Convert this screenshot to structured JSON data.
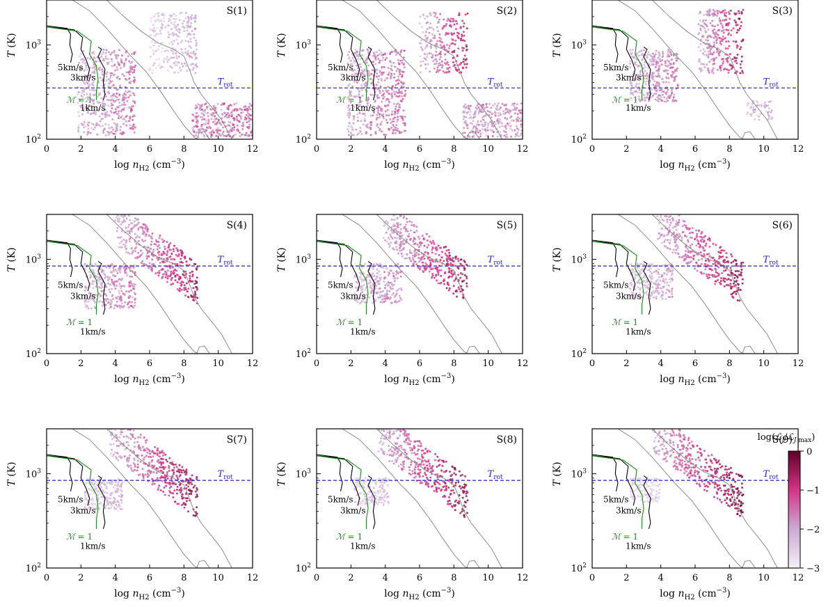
{
  "figure": {
    "x_ticks": [
      "0",
      "2",
      "4",
      "6",
      "8",
      "10",
      "12"
    ],
    "y_ticks": [
      {
        "base": "10",
        "exp": "2",
        "value": 100
      },
      {
        "base": "10",
        "exp": "3",
        "value": 1000
      }
    ],
    "xlabel_prefix": "log ",
    "xlabel_var": "n",
    "xlabel_sub": "H2",
    "xlabel_unit": " (cm",
    "xlabel_exp": "−3",
    "xlabel_close": ")",
    "ylabel_var": "T",
    "ylabel_unit": " (K)",
    "trot_var": "T",
    "trot_sub": "rot",
    "curve_labels": [
      "5km/s",
      "3km/s",
      "1km/s"
    ],
    "mach_var": "ℳ",
    "mach_eq": " = 1",
    "colors": {
      "trot_line": "#1f1fd6",
      "mach_line": "#1a8a1a",
      "velocity_line": "#000000",
      "boundary_line": "#8c8c8c",
      "cmap_low": "#f2eef6",
      "cmap_mid": "#d6398b",
      "cmap_high": "#5e0125"
    }
  },
  "colorbar": {
    "label_prefix": "log(",
    "label_L": "ℒ",
    "label_sub1": "J",
    "label_slash": "/",
    "label_sub2": "J",
    "label_max": " max",
    "label_close": ")",
    "ticks": [
      "0",
      "−1",
      "−2",
      "−3"
    ],
    "range": [
      -3,
      0
    ]
  },
  "chart_data": [
    {
      "type": "scatter",
      "title": "S(1)",
      "trot": 350,
      "xlim": [
        0,
        12
      ],
      "ylim": [
        100,
        3000
      ]
    },
    {
      "type": "scatter",
      "title": "S(2)",
      "trot": 350,
      "xlim": [
        0,
        12
      ],
      "ylim": [
        100,
        3000
      ]
    },
    {
      "type": "scatter",
      "title": "S(3)",
      "trot": 350,
      "xlim": [
        0,
        12
      ],
      "ylim": [
        100,
        3000
      ]
    },
    {
      "type": "scatter",
      "title": "S(4)",
      "trot": 850,
      "xlim": [
        0,
        12
      ],
      "ylim": [
        100,
        3000
      ]
    },
    {
      "type": "scatter",
      "title": "S(5)",
      "trot": 850,
      "xlim": [
        0,
        12
      ],
      "ylim": [
        100,
        3000
      ]
    },
    {
      "type": "scatter",
      "title": "S(6)",
      "trot": 850,
      "xlim": [
        0,
        12
      ],
      "ylim": [
        100,
        3000
      ]
    },
    {
      "type": "scatter",
      "title": "S(7)",
      "trot": 850,
      "xlim": [
        0,
        12
      ],
      "ylim": [
        100,
        3000
      ]
    },
    {
      "type": "scatter",
      "title": "S(8)",
      "trot": 850,
      "xlim": [
        0,
        12
      ],
      "ylim": [
        100,
        3000
      ]
    },
    {
      "type": "scatter",
      "title": "S(9)",
      "trot": 850,
      "xlim": [
        0,
        12
      ],
      "ylim": [
        100,
        3000
      ]
    }
  ]
}
